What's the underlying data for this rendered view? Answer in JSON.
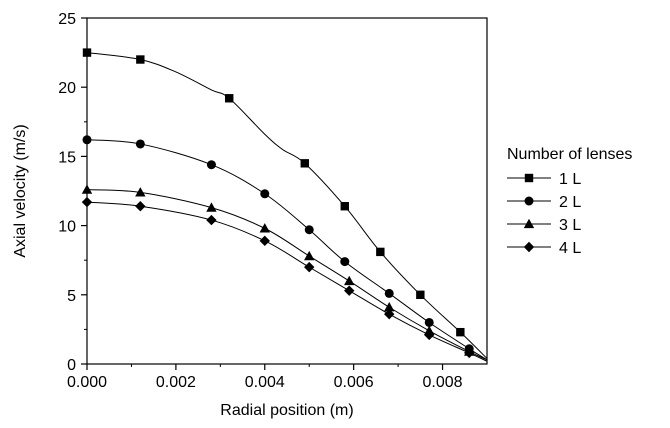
{
  "chart_data": {
    "type": "line",
    "xlabel": "Radial position (m)",
    "ylabel": "Axial velocity (m/s)",
    "xlim": [
      0,
      0.009
    ],
    "ylim": [
      0,
      25
    ],
    "x_ticks": [
      "0.000",
      "0.002",
      "0.004",
      "0.006",
      "0.008"
    ],
    "x_tick_values": [
      0,
      0.002,
      0.004,
      0.006,
      0.008
    ],
    "y_ticks": [
      "0",
      "5",
      "10",
      "15",
      "20",
      "25"
    ],
    "y_tick_values": [
      0,
      5,
      10,
      15,
      20,
      25
    ],
    "grid": false,
    "legend_title": "Number of lenses",
    "legend_position": "right",
    "series": [
      {
        "name": "1 L",
        "marker": "square",
        "x": [
          0.0,
          0.0012,
          0.0032,
          0.0049,
          0.0058,
          0.0066,
          0.0075,
          0.0084
        ],
        "y": [
          22.5,
          22.0,
          19.2,
          14.5,
          11.4,
          8.1,
          5.0,
          2.3
        ],
        "curve_x": [
          0.0,
          0.0012,
          0.002,
          0.0028,
          0.0032,
          0.004,
          0.0044,
          0.0049,
          0.0058,
          0.0066,
          0.0075,
          0.0084,
          0.009
        ],
        "curve_y": [
          22.5,
          22.0,
          21.1,
          19.8,
          19.2,
          16.6,
          15.5,
          14.5,
          11.4,
          8.1,
          5.0,
          2.3,
          0.4
        ]
      },
      {
        "name": "2 L",
        "marker": "circle",
        "x": [
          0.0,
          0.0012,
          0.0028,
          0.004,
          0.005,
          0.0058,
          0.0068,
          0.0077,
          0.0086
        ],
        "y": [
          16.2,
          15.9,
          14.4,
          12.3,
          9.7,
          7.4,
          5.1,
          3.0,
          1.1
        ],
        "curve_x": [
          0.0,
          0.0012,
          0.0028,
          0.004,
          0.005,
          0.0058,
          0.0068,
          0.0077,
          0.0086,
          0.009
        ],
        "curve_y": [
          16.2,
          15.9,
          14.4,
          12.3,
          9.7,
          7.4,
          5.1,
          3.0,
          1.1,
          0.3
        ]
      },
      {
        "name": "3 L",
        "marker": "triangle",
        "x": [
          0.0,
          0.0012,
          0.0028,
          0.004,
          0.005,
          0.0059,
          0.0068,
          0.0077,
          0.0086
        ],
        "y": [
          12.6,
          12.4,
          11.3,
          9.8,
          7.8,
          6.0,
          4.1,
          2.4,
          0.9
        ],
        "curve_x": [
          0.0,
          0.0012,
          0.0028,
          0.004,
          0.005,
          0.0059,
          0.0068,
          0.0077,
          0.0086,
          0.009
        ],
        "curve_y": [
          12.6,
          12.4,
          11.3,
          9.8,
          7.8,
          6.0,
          4.1,
          2.4,
          0.9,
          0.3
        ]
      },
      {
        "name": "4 L",
        "marker": "diamond",
        "x": [
          0.0,
          0.0012,
          0.0028,
          0.004,
          0.005,
          0.0059,
          0.0068,
          0.0077,
          0.0086
        ],
        "y": [
          11.7,
          11.4,
          10.4,
          8.9,
          7.0,
          5.3,
          3.6,
          2.1,
          0.8
        ],
        "curve_x": [
          0.0,
          0.0012,
          0.0028,
          0.004,
          0.005,
          0.0059,
          0.0068,
          0.0077,
          0.0086,
          0.009
        ],
        "curve_y": [
          11.7,
          11.4,
          10.4,
          8.9,
          7.0,
          5.3,
          3.6,
          2.1,
          0.8,
          0.2
        ]
      }
    ]
  }
}
